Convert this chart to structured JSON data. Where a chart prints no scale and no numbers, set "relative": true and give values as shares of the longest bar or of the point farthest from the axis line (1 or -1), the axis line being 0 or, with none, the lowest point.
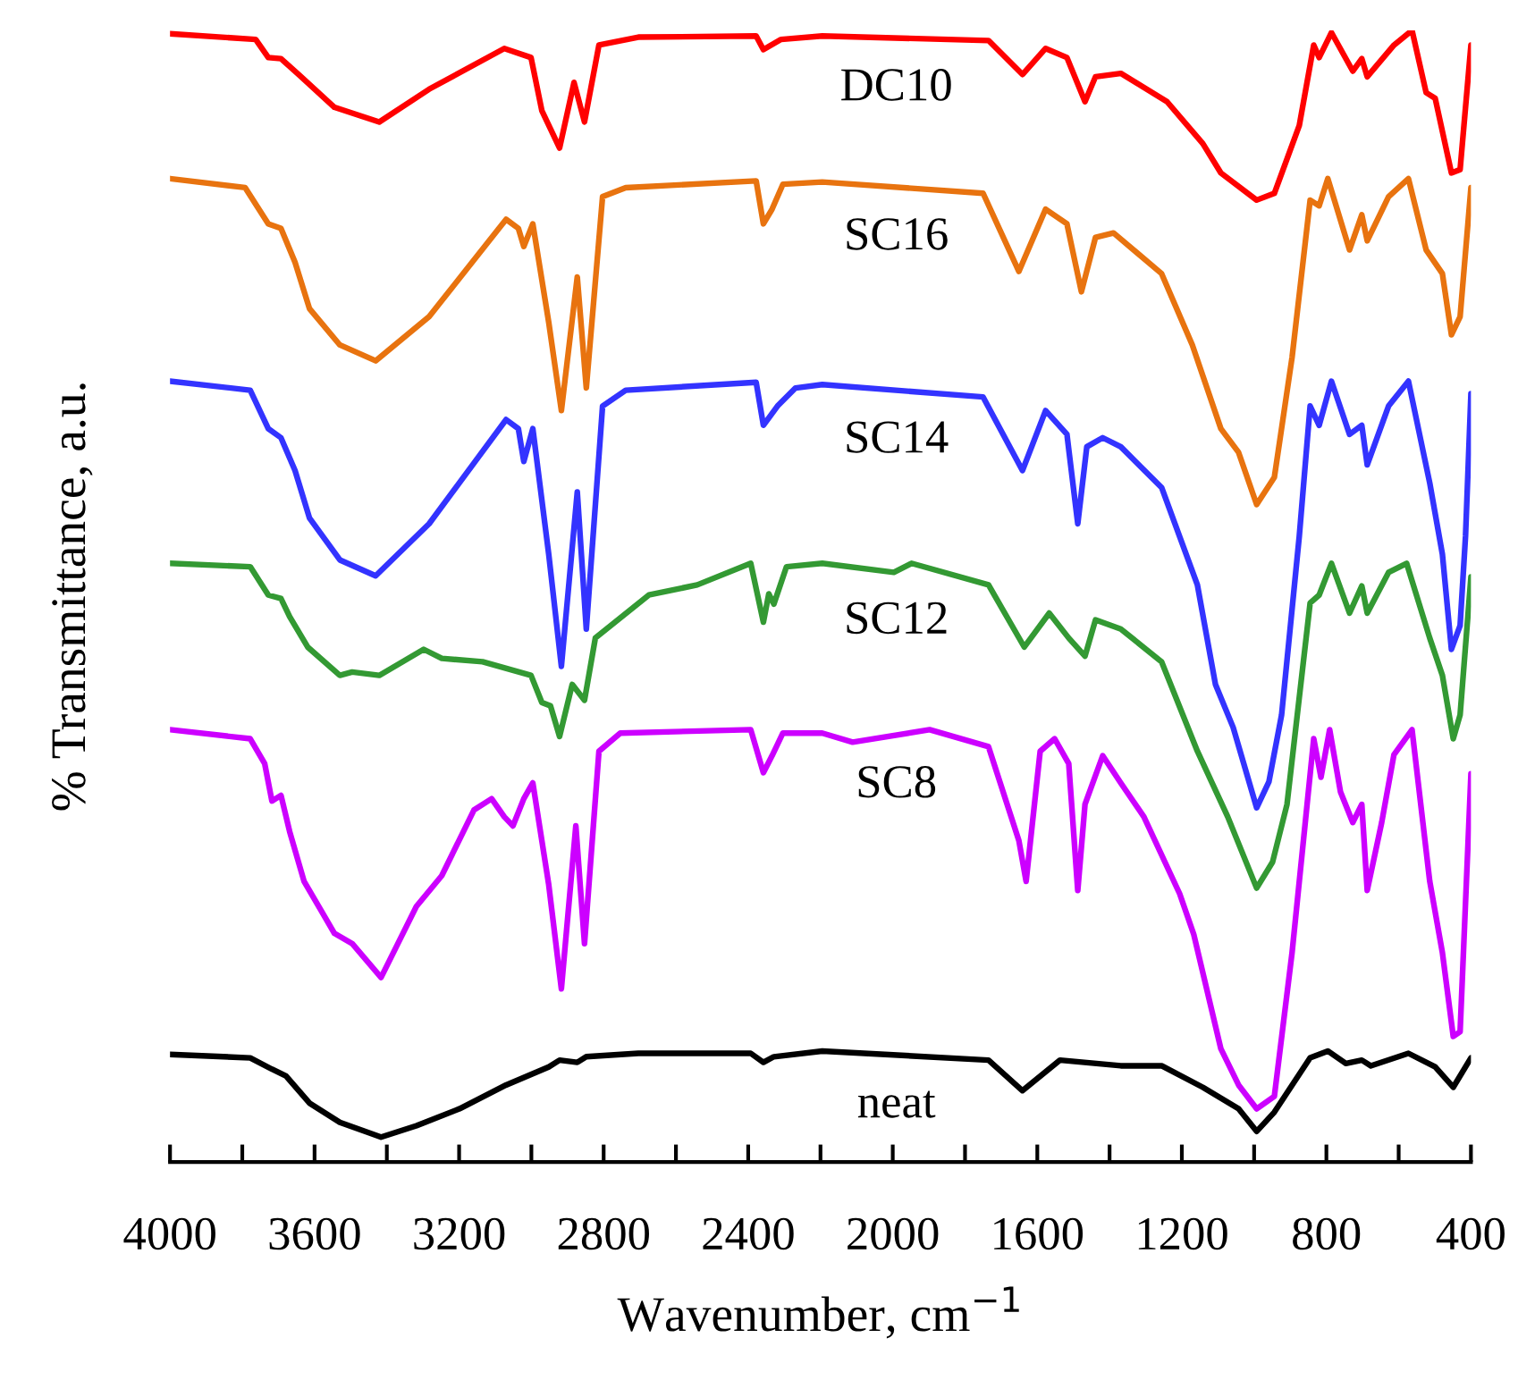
{
  "chart_data": {
    "type": "line",
    "relative": true,
    "xlabel": "Wavenumber, cm$^{−1}$",
    "ylabel": "% Transmittance, a.u.",
    "xlim": [
      4000,
      400
    ],
    "xticks": [
      4000,
      {
        "value": 3800,
        "label": null
      },
      3600,
      {
        "value": 3400,
        "label": null
      },
      3200,
      {
        "value": 3000,
        "label": null
      },
      2800,
      {
        "value": 2600,
        "label": null
      },
      2400,
      {
        "value": 2200,
        "label": null
      },
      2000,
      {
        "value": 1800,
        "label": null
      },
      1600,
      {
        "value": 1400,
        "label": null
      },
      1200,
      {
        "value": 1000,
        "label": null
      },
      800,
      {
        "value": 600,
        "label": null
      },
      400
    ],
    "series": [
      {
        "name": "DC10",
        "color": "#ff0000",
        "x": [
          4000,
          3763,
          3728,
          3693,
          3644,
          3545,
          3421,
          3283,
          3075,
          3001,
          2971,
          2922,
          2882,
          2853,
          2813,
          2704,
          2378,
          2358,
          2309,
          2195,
          1735,
          1641,
          1577,
          1518,
          1468,
          1439,
          1369,
          1241,
          1142,
          1092,
          993,
          944,
          875,
          835,
          820,
          786,
          727,
          702,
          687,
          613,
          563,
          524,
          499,
          454,
          430,
          400
        ],
        "values": [
          0.997,
          0.992,
          0.976,
          0.975,
          0.961,
          0.932,
          0.919,
          0.948,
          0.984,
          0.976,
          0.929,
          0.896,
          0.954,
          0.919,
          0.987,
          0.994,
          0.995,
          0.983,
          0.992,
          0.995,
          0.991,
          0.961,
          0.984,
          0.976,
          0.937,
          0.959,
          0.962,
          0.937,
          0.9,
          0.874,
          0.85,
          0.856,
          0.916,
          0.987,
          0.976,
          0.998,
          0.964,
          0.975,
          0.959,
          0.987,
          1.0,
          0.945,
          0.94,
          0.874,
          0.877,
          0.987
        ]
      },
      {
        "name": "SC16",
        "color": "#e8730f",
        "x": [
          4000,
          3792,
          3728,
          3693,
          3654,
          3614,
          3530,
          3431,
          3283,
          3070,
          3036,
          3021,
          2996,
          2952,
          2917,
          2873,
          2848,
          2803,
          2739,
          2378,
          2358,
          2334,
          2304,
          2195,
          1750,
          1651,
          1577,
          1518,
          1478,
          1439,
          1389,
          1256,
          1171,
          1092,
          1043,
          993,
          944,
          895,
          845,
          820,
          796,
          736,
          702,
          687,
          628,
          573,
          524,
          479,
          454,
          430,
          400
        ],
        "values": [
          0.869,
          0.861,
          0.829,
          0.825,
          0.795,
          0.754,
          0.722,
          0.708,
          0.747,
          0.833,
          0.825,
          0.809,
          0.829,
          0.742,
          0.664,
          0.782,
          0.684,
          0.853,
          0.861,
          0.867,
          0.829,
          0.842,
          0.864,
          0.866,
          0.856,
          0.787,
          0.842,
          0.829,
          0.769,
          0.817,
          0.821,
          0.785,
          0.722,
          0.648,
          0.627,
          0.581,
          0.605,
          0.711,
          0.85,
          0.845,
          0.869,
          0.806,
          0.837,
          0.814,
          0.853,
          0.869,
          0.806,
          0.785,
          0.731,
          0.747,
          0.861
        ]
      },
      {
        "name": "SC14",
        "color": "#3333ff",
        "x": [
          4000,
          3778,
          3728,
          3693,
          3654,
          3614,
          3530,
          3431,
          3283,
          3070,
          3036,
          3021,
          2996,
          2952,
          2917,
          2873,
          2848,
          2803,
          2739,
          2378,
          2358,
          2319,
          2269,
          2195,
          1750,
          1641,
          1577,
          1518,
          1488,
          1463,
          1419,
          1369,
          1256,
          1157,
          1107,
          1058,
          993,
          959,
          924,
          875,
          845,
          820,
          786,
          736,
          702,
          687,
          628,
          573,
          514,
          479,
          454,
          430,
          415,
          400
        ],
        "values": [
          0.69,
          0.682,
          0.648,
          0.64,
          0.611,
          0.569,
          0.532,
          0.518,
          0.564,
          0.656,
          0.648,
          0.619,
          0.648,
          0.537,
          0.438,
          0.592,
          0.471,
          0.668,
          0.682,
          0.689,
          0.651,
          0.668,
          0.684,
          0.687,
          0.676,
          0.611,
          0.664,
          0.643,
          0.564,
          0.632,
          0.64,
          0.632,
          0.596,
          0.51,
          0.422,
          0.384,
          0.313,
          0.336,
          0.395,
          0.553,
          0.668,
          0.651,
          0.69,
          0.643,
          0.651,
          0.616,
          0.668,
          0.69,
          0.6,
          0.537,
          0.453,
          0.474,
          0.553,
          0.679
        ]
      },
      {
        "name": "SC12",
        "color": "#339933",
        "x": [
          4000,
          3778,
          3728,
          3693,
          3669,
          3619,
          3530,
          3496,
          3421,
          3298,
          3248,
          3135,
          3001,
          2971,
          2947,
          2922,
          2887,
          2853,
          2823,
          2675,
          2541,
          2393,
          2358,
          2343,
          2329,
          2294,
          2195,
          1997,
          1948,
          1735,
          1636,
          1567,
          1513,
          1468,
          1439,
          1369,
          1256,
          1157,
          1073,
          993,
          949,
          909,
          845,
          820,
          786,
          736,
          702,
          687,
          628,
          578,
          514,
          479,
          449,
          430,
          400
        ],
        "values": [
          0.529,
          0.526,
          0.501,
          0.498,
          0.482,
          0.455,
          0.43,
          0.433,
          0.43,
          0.453,
          0.445,
          0.442,
          0.43,
          0.406,
          0.403,
          0.376,
          0.422,
          0.408,
          0.463,
          0.501,
          0.51,
          0.529,
          0.477,
          0.502,
          0.493,
          0.526,
          0.529,
          0.521,
          0.529,
          0.51,
          0.455,
          0.485,
          0.463,
          0.447,
          0.479,
          0.471,
          0.442,
          0.363,
          0.305,
          0.242,
          0.265,
          0.316,
          0.494,
          0.501,
          0.529,
          0.485,
          0.509,
          0.485,
          0.521,
          0.529,
          0.463,
          0.43,
          0.374,
          0.395,
          0.517
        ]
      },
      {
        "name": "SC8",
        "color": "#cc00ff",
        "x": [
          4000,
          3778,
          3738,
          3718,
          3693,
          3669,
          3629,
          3545,
          3496,
          3416,
          3318,
          3248,
          3159,
          3110,
          3075,
          3051,
          3021,
          2996,
          2952,
          2917,
          2877,
          2853,
          2813,
          2754,
          2393,
          2358,
          2334,
          2304,
          2195,
          2111,
          1898,
          1735,
          1651,
          1631,
          1592,
          1552,
          1513,
          1488,
          1468,
          1419,
          1369,
          1305,
          1206,
          1167,
          1092,
          1043,
          993,
          944,
          895,
          835,
          815,
          791,
          761,
          727,
          702,
          687,
          647,
          613,
          563,
          514,
          479,
          449,
          430,
          400
        ],
        "values": [
          0.382,
          0.374,
          0.352,
          0.319,
          0.324,
          0.292,
          0.248,
          0.202,
          0.193,
          0.163,
          0.226,
          0.253,
          0.311,
          0.321,
          0.305,
          0.297,
          0.321,
          0.335,
          0.245,
          0.153,
          0.297,
          0.193,
          0.363,
          0.379,
          0.382,
          0.344,
          0.359,
          0.379,
          0.379,
          0.371,
          0.382,
          0.367,
          0.284,
          0.248,
          0.363,
          0.374,
          0.352,
          0.24,
          0.316,
          0.359,
          0.335,
          0.305,
          0.237,
          0.201,
          0.1,
          0.068,
          0.047,
          0.058,
          0.185,
          0.374,
          0.34,
          0.382,
          0.327,
          0.3,
          0.316,
          0.24,
          0.3,
          0.36,
          0.382,
          0.248,
          0.185,
          0.111,
          0.115,
          0.343
        ]
      },
      {
        "name": "neat",
        "color": "#000000",
        "x": [
          4000,
          3778,
          3718,
          3679,
          3614,
          3530,
          3416,
          3318,
          3199,
          3070,
          2952,
          2922,
          2873,
          2848,
          2704,
          2393,
          2358,
          2329,
          2195,
          1735,
          1641,
          1537,
          1369,
          1256,
          1142,
          1043,
          993,
          944,
          845,
          796,
          746,
          702,
          677,
          573,
          499,
          449,
          400
        ],
        "values": [
          0.095,
          0.092,
          0.082,
          0.076,
          0.052,
          0.035,
          0.022,
          0.032,
          0.047,
          0.068,
          0.084,
          0.09,
          0.088,
          0.093,
          0.096,
          0.096,
          0.088,
          0.093,
          0.098,
          0.09,
          0.063,
          0.09,
          0.085,
          0.085,
          0.066,
          0.047,
          0.027,
          0.044,
          0.092,
          0.098,
          0.087,
          0.09,
          0.085,
          0.096,
          0.084,
          0.066,
          0.092
        ]
      }
    ]
  }
}
